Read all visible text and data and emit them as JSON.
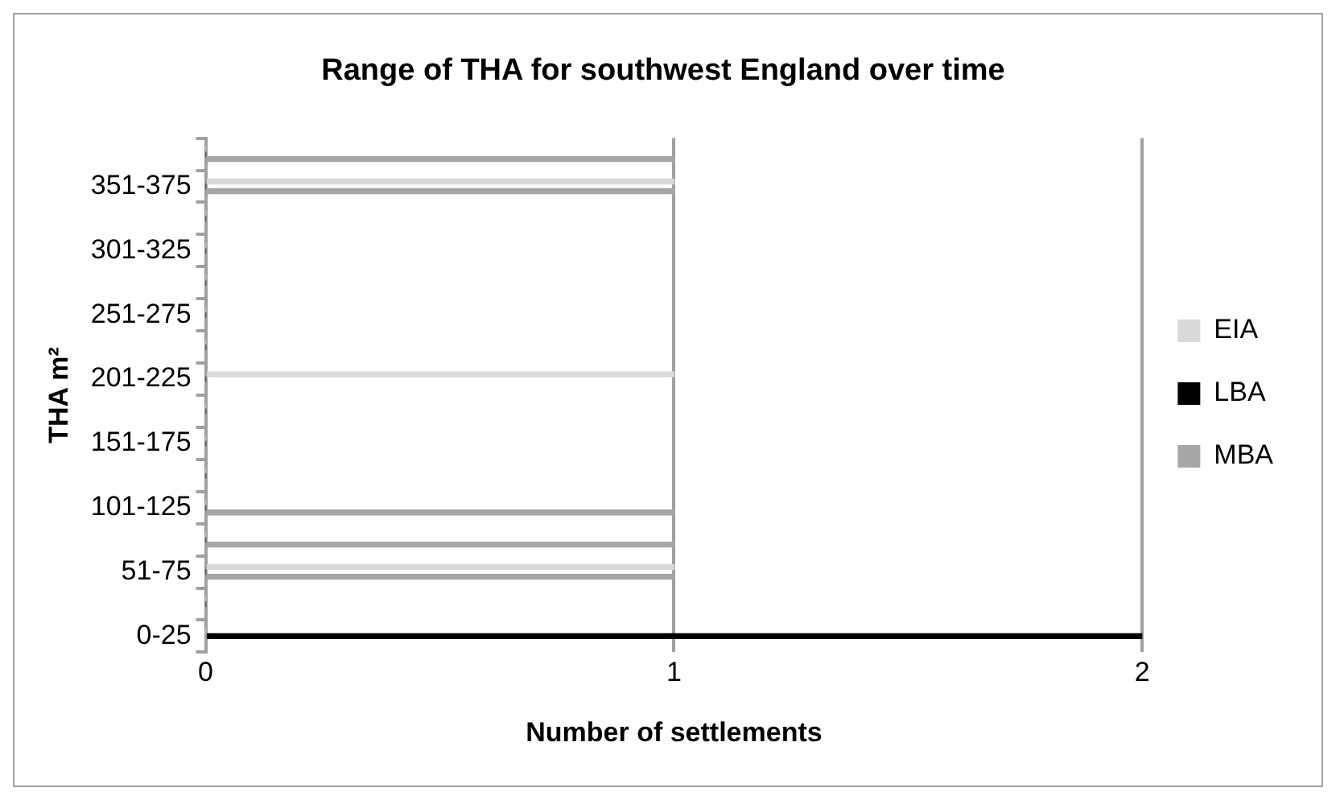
{
  "chart_data": {
    "type": "bar",
    "orientation": "horizontal",
    "title": "Range of THA for southwest England over time",
    "xlabel": "Number of settlements",
    "ylabel": "THA m²",
    "categories": [
      null,
      "351-375",
      null,
      "301-325",
      null,
      "251-275",
      null,
      "201-225",
      null,
      "151-175",
      null,
      "101-125",
      null,
      "51-75",
      null,
      "0-25"
    ],
    "series": [
      {
        "name": "EIA",
        "color": "#d9d9d9",
        "values": [
          0,
          1,
          0,
          0,
          0,
          0,
          0,
          1,
          0,
          0,
          0,
          0,
          0,
          1,
          0,
          0
        ]
      },
      {
        "name": "LBA",
        "color": "#000000",
        "values": [
          0,
          0,
          0,
          0,
          0,
          0,
          0,
          0,
          0,
          0,
          0,
          0,
          0,
          0,
          0,
          2
        ]
      },
      {
        "name": "MBA",
        "color": "#a6a6a6",
        "values": [
          1,
          1,
          0,
          0,
          0,
          0,
          0,
          0,
          0,
          0,
          0,
          1,
          1,
          1,
          0,
          0
        ]
      }
    ],
    "xlim": [
      0,
      2
    ],
    "xticks": [
      0,
      1,
      2
    ],
    "grid": "x",
    "legend": "right"
  }
}
